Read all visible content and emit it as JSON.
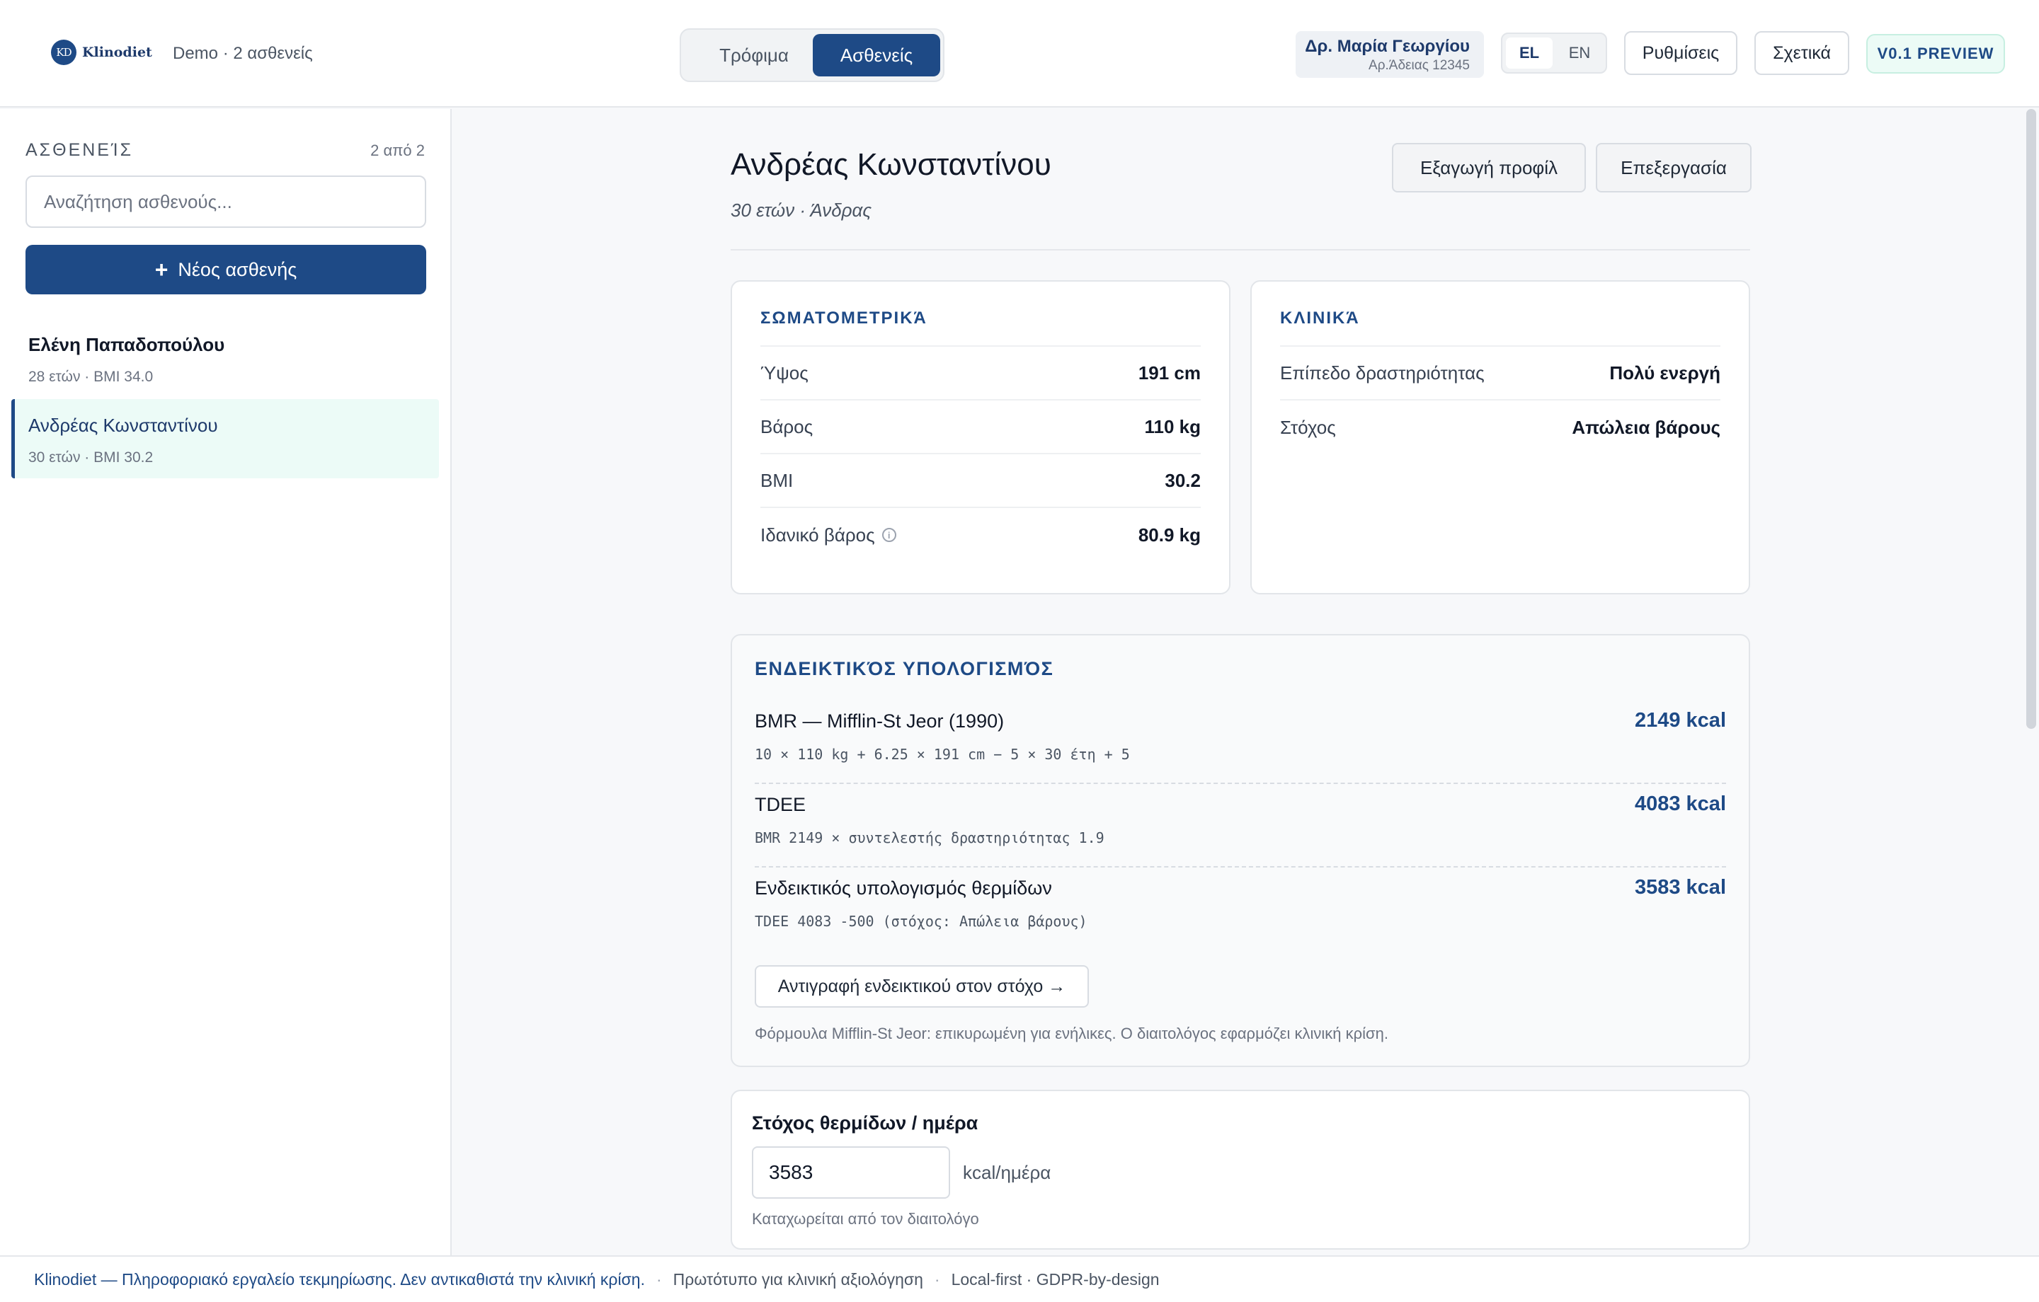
{
  "header": {
    "logo_mark": "KD",
    "logo_text": "Klinodiet",
    "demo_label": "Demo · 2 ασθενείς",
    "tabs": [
      {
        "label": "Τρόφιμα",
        "active": false
      },
      {
        "label": "Ασθενείς",
        "active": true
      }
    ],
    "doctor": {
      "name": "Δρ. Μαρία Γεωργίου",
      "license": "Αρ.Άδειας 12345"
    },
    "languages": [
      {
        "label": "EL",
        "active": true
      },
      {
        "label": "EN",
        "active": false
      }
    ],
    "settings_label": "Ρυθμίσεις",
    "about_label": "Σχετικά",
    "version_badge": "V0.1 PREVIEW"
  },
  "sidebar": {
    "title": "ΑΣΘΕΝΕΊΣ",
    "count": "2 από 2",
    "search_placeholder": "Αναζήτηση ασθενούς...",
    "new_button": "Νέος ασθενής",
    "patients": [
      {
        "name": "Ελένη Παπαδοπούλου",
        "meta": "28 ετών · BMI 34.0",
        "selected": false
      },
      {
        "name": "Ανδρέας Κωνσταντίνου",
        "meta": "30 ετών · BMI 30.2",
        "selected": true
      }
    ]
  },
  "main": {
    "patient_name": "Ανδρέας Κωνσταντίνου",
    "patient_sub": "30 ετών · Άνδρας",
    "export_button": "Εξαγωγή προφίλ",
    "edit_button": "Επεξεργασία",
    "anthropometrics": {
      "title": "ΣΩΜΑΤΟΜΕΤΡΙΚΆ",
      "rows": [
        {
          "label": "Ύψος",
          "value": "191 cm"
        },
        {
          "label": "Βάρος",
          "value": "110 kg"
        },
        {
          "label": "BMI",
          "value": "30.2"
        },
        {
          "label": "Ιδανικό βάρος",
          "value": "80.9 kg"
        }
      ]
    },
    "clinical": {
      "title": "ΚΛΙΝΙΚΆ",
      "rows": [
        {
          "label": "Επίπεδο δραστηριότητας",
          "value": "Πολύ ενεργή"
        },
        {
          "label": "Στόχος",
          "value": "Απώλεια βάρους"
        }
      ]
    },
    "calculation": {
      "title": "ΕΝΔΕΙΚΤΙΚΌΣ ΥΠΟΛΟΓΙΣΜΌΣ",
      "rows": [
        {
          "name": "BMR — Mifflin-St Jeor (1990)",
          "formula": "10 × 110 kg + 6.25 × 191 cm − 5 × 30 έτη + 5",
          "value": "2149 kcal"
        },
        {
          "name": "TDEE",
          "formula": "BMR 2149 × συντελεστής δραστηριότητας 1.9",
          "value": "4083 kcal"
        },
        {
          "name": "Ενδεικτικός υπολογισμός θερμίδων",
          "formula": "TDEE 4083 -500 (στόχος: Απώλεια βάρους)",
          "value": "3583 kcal"
        }
      ],
      "copy_button": "Αντιγραφή ενδεικτικού στον στόχο →",
      "note": "Φόρμουλα Mifflin-St Jeor: επικυρωμένη για ενήλικες. Ο διαιτολόγος εφαρμόζει κλινική κρίση."
    },
    "target": {
      "title": "Στόχος θερμίδων / ημέρα",
      "value": "3583",
      "unit": "kcal/ημέρα",
      "help": "Καταχωρείται από τον διαιτολόγο"
    }
  },
  "footer": {
    "main": "Klinodiet — Πληροφοριακό εργαλείο τεκμηρίωσης. Δεν αντικαθιστά την κλινική κρίση.",
    "separator": "·",
    "prototype": "Πρωτότυπο για κλινική αξιολόγηση",
    "local": "Local-first · GDPR-by-design"
  },
  "colors": {
    "accent": "#1e4a86",
    "selected_bg": "#ecfbf7",
    "badge_bg": "#ecfbf6"
  }
}
